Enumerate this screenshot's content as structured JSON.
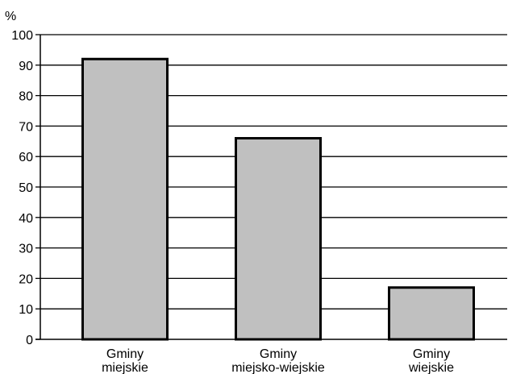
{
  "chart_data": {
    "type": "bar",
    "y_unit": "%",
    "categories": [
      [
        "Gminy",
        "miejskie"
      ],
      [
        "Gminy",
        "miejsko-wiejskie"
      ],
      [
        "Gminy",
        "wiejskie"
      ]
    ],
    "values": [
      92,
      66,
      17
    ],
    "ylim": [
      0,
      100
    ],
    "yticks": [
      0,
      10,
      20,
      30,
      40,
      50,
      60,
      70,
      80,
      90,
      100
    ],
    "grid": true,
    "colors": {
      "bar_fill": "#c0c0c0",
      "bar_stroke": "#000000",
      "grid": "#000000"
    }
  }
}
